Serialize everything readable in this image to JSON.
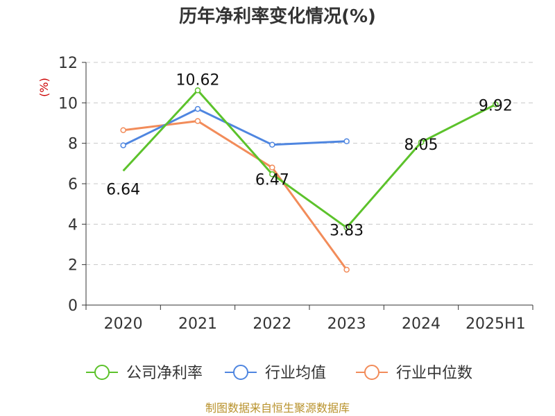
{
  "chart_data": {
    "type": "line",
    "title": "历年净利率变化情况(%)",
    "ylabel": "(%)",
    "xlabel": "",
    "categories": [
      "2020",
      "2021",
      "2022",
      "2023",
      "2024",
      "2025H1"
    ],
    "y_ticks": [
      "0",
      "2",
      "4",
      "6",
      "8",
      "10",
      "12"
    ],
    "ylim": [
      0,
      12
    ],
    "grid": true,
    "legend_position": "bottom",
    "series": [
      {
        "name": "公司净利率",
        "color": "#5cc22b",
        "values": [
          6.64,
          10.62,
          6.47,
          3.83,
          8.05,
          9.92
        ],
        "labels": [
          "6.64",
          "10.62",
          "6.47",
          "3.83",
          "8.05",
          "9.92"
        ]
      },
      {
        "name": "行业均值",
        "color": "#4f86e0",
        "values": [
          7.9,
          9.7,
          7.93,
          8.1,
          null,
          null
        ]
      },
      {
        "name": "行业中位数",
        "color": "#f28c5a",
        "values": [
          8.65,
          9.1,
          6.8,
          1.75,
          null,
          null
        ]
      }
    ]
  },
  "source": "制图数据来自恒生聚源数据库"
}
